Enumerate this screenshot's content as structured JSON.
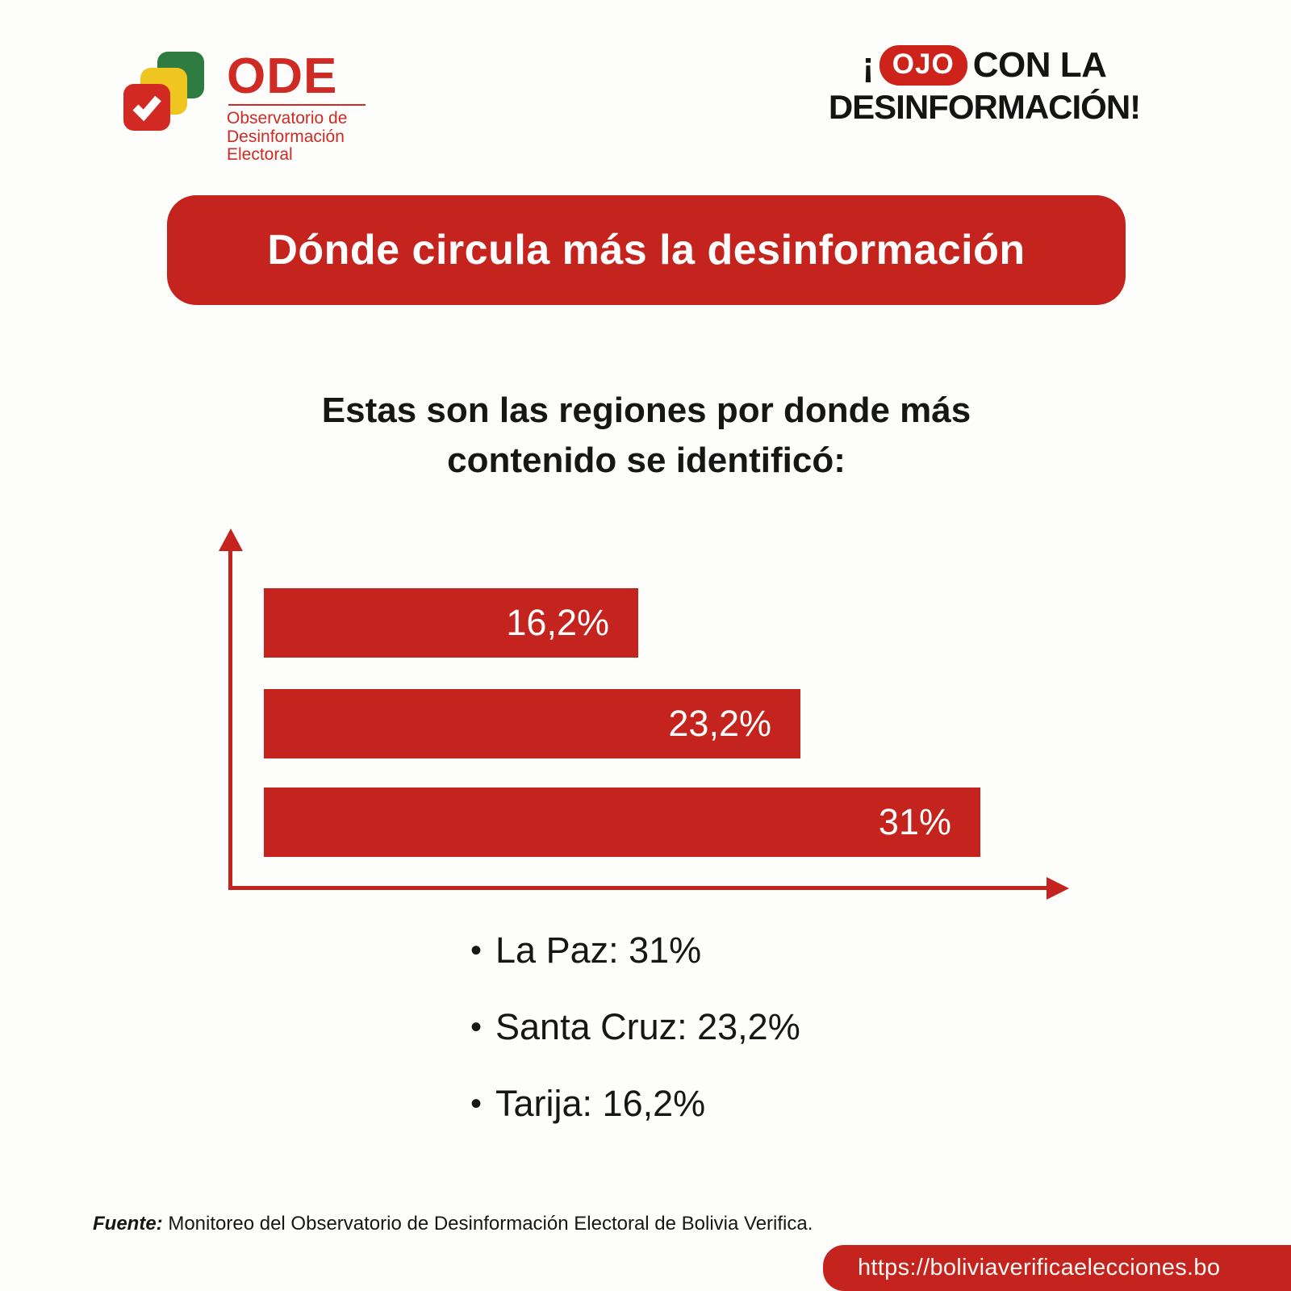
{
  "page": {
    "background": "#FDFDFB",
    "accent_red": "#C5241E"
  },
  "logo_ode": {
    "acronym": "ODE",
    "sub_line1": "Observatorio de",
    "sub_line2": "Desinformación",
    "sub_line3": "Electoral",
    "colors": {
      "red": "#D22A22",
      "yellow": "#EFC51F",
      "green": "#2E7C3F",
      "text_red": "#CF2A23"
    }
  },
  "logo_ojo": {
    "prefix": "¡",
    "highlight": "OJO",
    "line1_rest": "CON LA",
    "line2": "DESINFORMACIÓN!",
    "pill_color": "#CE231B",
    "text_color": "#141414"
  },
  "title": {
    "text": "Dónde circula más la desinformación",
    "bg": "#C5241E",
    "color": "#FFFFFF"
  },
  "subtitle": {
    "line1": "Estas son las regiones por donde más",
    "line2": "contenido se identificó:"
  },
  "chart_data": {
    "type": "bar",
    "orientation": "horizontal",
    "categories": [
      "Tarija",
      "Santa Cruz",
      "La Paz"
    ],
    "values": [
      16.2,
      23.2,
      31
    ],
    "labels": [
      "16,2%",
      "23,2%",
      "31%"
    ],
    "title": "Dónde circula más la desinformación",
    "xlabel": "",
    "ylabel": "",
    "xlim": [
      0,
      36
    ],
    "grid": false,
    "legend_position": "none",
    "bar_color": "#C5241E",
    "label_color": "#FFFFFF",
    "axis_color": "#C5241E",
    "value_labels_inside_bars": true
  },
  "legend": {
    "bullet": "•",
    "items": [
      {
        "label": "La Paz: 31%"
      },
      {
        "label": "Santa Cruz: 23,2%"
      },
      {
        "label": "Tarija: 16,2%"
      }
    ]
  },
  "footer": {
    "source_label": "Fuente:",
    "source_text": " Monitoreo del Observatorio de Desinformación Electoral de Bolivia Verifica.",
    "url": "https://boliviaverificaelecciones.bo",
    "url_bg": "#C5241E"
  }
}
